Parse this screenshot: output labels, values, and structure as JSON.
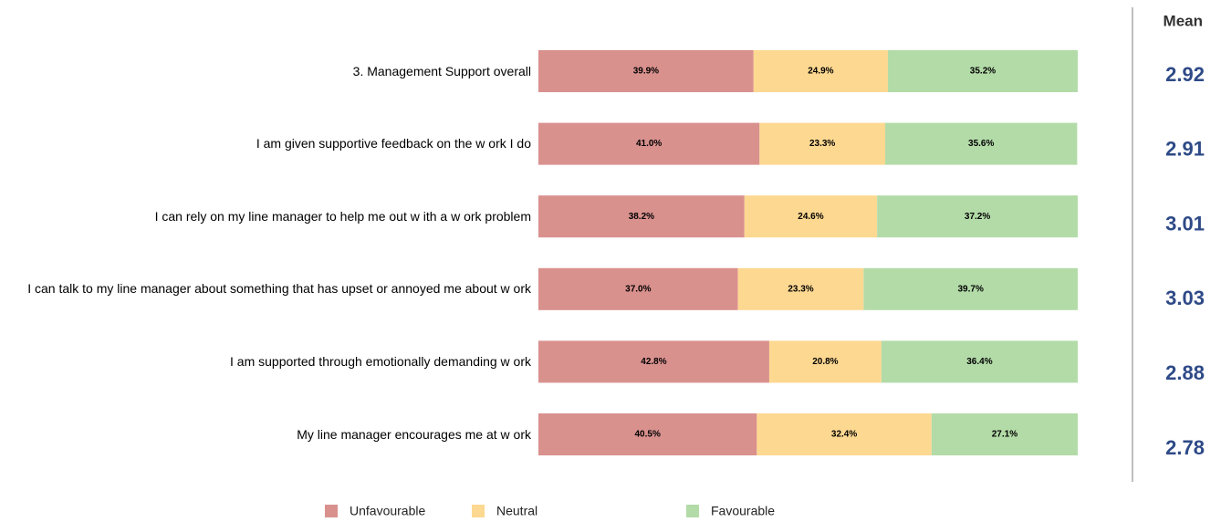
{
  "chart_data": {
    "type": "stacked-bar-horizontal",
    "categories": [
      "3. Management Support overall",
      "I am given supportive feedback on the w ork I do",
      "I can rely on my line manager to help me out w ith a w ork problem",
      "I can talk to my line manager about something that has upset or annoyed me about w ork",
      "I am supported through emotionally demanding w ork",
      "My line manager encourages me at w ork"
    ],
    "xlim": [
      0,
      100
    ],
    "series": [
      {
        "name": "Unfavourable",
        "color": "#d9918e",
        "values": [
          39.9,
          41.0,
          38.2,
          37.0,
          42.8,
          40.5
        ],
        "value_labels": [
          "39.9%",
          "41.0%",
          "38.2%",
          "37.0%",
          "42.8%",
          "40.5%"
        ]
      },
      {
        "name": "Neutral",
        "color": "#fdd891",
        "values": [
          24.9,
          23.3,
          24.6,
          23.3,
          20.8,
          32.4
        ],
        "value_labels": [
          "24.9%",
          "23.3%",
          "24.6%",
          "23.3%",
          "20.8%",
          "32.4%"
        ]
      },
      {
        "name": "Favourable",
        "color": "#b3dba8",
        "values": [
          35.2,
          35.6,
          37.2,
          39.7,
          36.4,
          27.1
        ],
        "value_labels": [
          "35.2%",
          "35.6%",
          "37.2%",
          "39.7%",
          "36.4%",
          "27.1%"
        ]
      }
    ],
    "mean": {
      "title": "Mean",
      "values": [
        2.92,
        2.91,
        3.01,
        3.03,
        2.88,
        2.78
      ],
      "color": "#2e4a87"
    }
  }
}
